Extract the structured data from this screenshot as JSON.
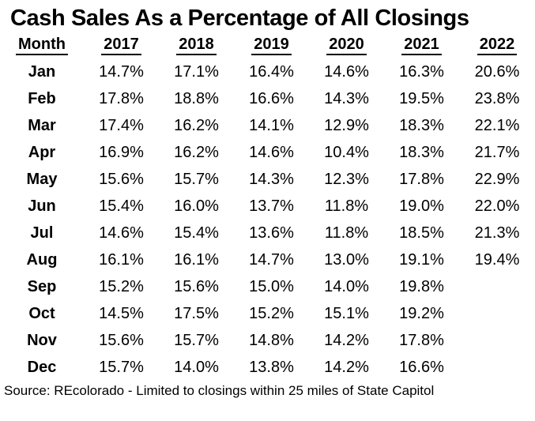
{
  "title": "Cash Sales As a Percentage of All Closings",
  "source_note": "Source: REcolorado - Limited to closings within 25 miles of State Capitol",
  "colors": {
    "text": "#000000",
    "background": "#ffffff"
  },
  "chart_data": {
    "type": "table",
    "title": "Cash Sales As a Percentage of All Closings",
    "columns": [
      "Month",
      "2017",
      "2018",
      "2019",
      "2020",
      "2021",
      "2022"
    ],
    "rows": [
      [
        "Jan",
        "14.7%",
        "17.1%",
        "16.4%",
        "14.6%",
        "16.3%",
        "20.6%"
      ],
      [
        "Feb",
        "17.8%",
        "18.8%",
        "16.6%",
        "14.3%",
        "19.5%",
        "23.8%"
      ],
      [
        "Mar",
        "17.4%",
        "16.2%",
        "14.1%",
        "12.9%",
        "18.3%",
        "22.1%"
      ],
      [
        "Apr",
        "16.9%",
        "16.2%",
        "14.6%",
        "10.4%",
        "18.3%",
        "21.7%"
      ],
      [
        "May",
        "15.6%",
        "15.7%",
        "14.3%",
        "12.3%",
        "17.8%",
        "22.9%"
      ],
      [
        "Jun",
        "15.4%",
        "16.0%",
        "13.7%",
        "11.8%",
        "19.0%",
        "22.0%"
      ],
      [
        "Jul",
        "14.6%",
        "15.4%",
        "13.6%",
        "11.8%",
        "18.5%",
        "21.3%"
      ],
      [
        "Aug",
        "16.1%",
        "16.1%",
        "14.7%",
        "13.0%",
        "19.1%",
        "19.4%"
      ],
      [
        "Sep",
        "15.2%",
        "15.6%",
        "15.0%",
        "14.0%",
        "19.8%",
        ""
      ],
      [
        "Oct",
        "14.5%",
        "17.5%",
        "15.2%",
        "15.1%",
        "19.2%",
        ""
      ],
      [
        "Nov",
        "15.6%",
        "15.7%",
        "14.8%",
        "14.2%",
        "17.8%",
        ""
      ],
      [
        "Dec",
        "15.7%",
        "14.0%",
        "13.8%",
        "14.2%",
        "16.6%",
        ""
      ]
    ]
  }
}
